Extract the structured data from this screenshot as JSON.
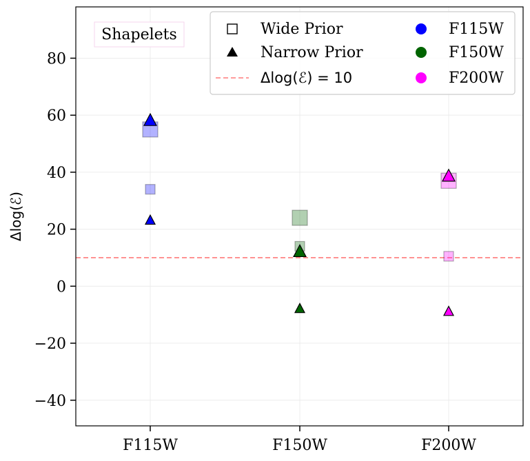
{
  "chart_data": {
    "type": "scatter",
    "title": "",
    "xlabel": "",
    "ylabel": "Δlog(ℰ)",
    "ylim": [
      -49,
      98
    ],
    "yticks": [
      -40,
      -20,
      0,
      20,
      40,
      60,
      80
    ],
    "ytick_labels": [
      "−40",
      "−20",
      "0",
      "20",
      "40",
      "60",
      "80"
    ],
    "categories": [
      "F115W",
      "F150W",
      "F200W"
    ],
    "grid": true,
    "annotation": "Shapelets",
    "reference_line": {
      "y": 10,
      "label": "Δlog(ℰ) = 10",
      "color": "#ff7a7a",
      "style": "dashed"
    },
    "colors": {
      "F115W": "#0000ff",
      "F150W": "#006400",
      "F200W": "#ff00ff"
    },
    "series": [
      {
        "name": "Wide Prior",
        "marker": "square",
        "filter": "F115W",
        "values": [
          55,
          34
        ]
      },
      {
        "name": "Narrow Prior",
        "marker": "triangle",
        "filter": "F115W",
        "values": [
          58,
          23
        ]
      },
      {
        "name": "Wide Prior",
        "marker": "square",
        "filter": "F150W",
        "values": [
          24,
          14
        ]
      },
      {
        "name": "Narrow Prior",
        "marker": "triangle",
        "filter": "F150W",
        "values": [
          12,
          -8
        ]
      },
      {
        "name": "Wide Prior",
        "marker": "square",
        "filter": "F200W",
        "values": [
          37,
          10.5
        ]
      },
      {
        "name": "Narrow Prior",
        "marker": "triangle",
        "filter": "F200W",
        "values": [
          38.5,
          -9
        ]
      }
    ],
    "legend": {
      "placement": "top-right",
      "entries": [
        {
          "label": "Wide Prior",
          "kind": "open-square"
        },
        {
          "label": "Narrow Prior",
          "kind": "filled-triangle"
        },
        {
          "label": "Δlog(ℰ) = 10",
          "kind": "dashed-line"
        },
        {
          "label": "F115W",
          "kind": "dot",
          "color": "#0000ff"
        },
        {
          "label": "F150W",
          "kind": "dot",
          "color": "#006400"
        },
        {
          "label": "F200W",
          "kind": "dot",
          "color": "#ff00ff"
        }
      ]
    }
  }
}
